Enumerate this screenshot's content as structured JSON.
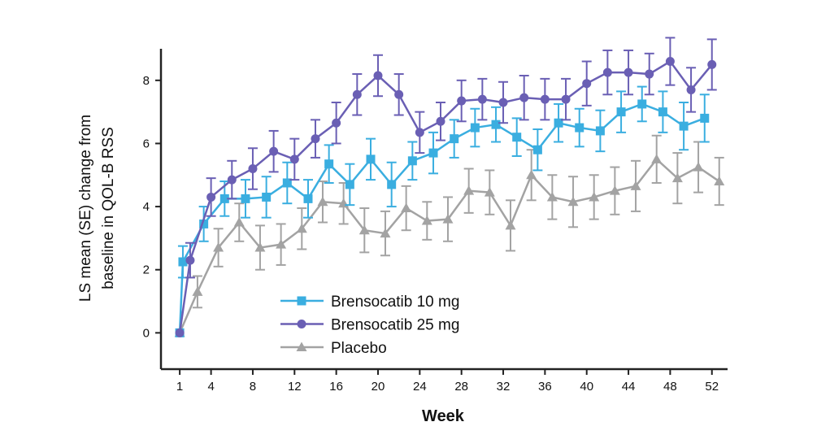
{
  "chart_data": {
    "type": "line",
    "title": "",
    "xlabel": "Week",
    "ylabel_lines": [
      "LS mean (SE) change from",
      "baseline in QOL-B RSS"
    ],
    "x_ticks": [
      1,
      4,
      8,
      12,
      16,
      20,
      24,
      28,
      32,
      36,
      40,
      44,
      48,
      52
    ],
    "y_ticks": [
      0,
      2,
      4,
      6,
      8
    ],
    "xlim": [
      -0.8,
      53.5
    ],
    "ylim": [
      -1.15,
      9.0
    ],
    "grid": false,
    "legend_position": "bottom-center",
    "x": [
      1,
      2,
      4,
      6,
      8,
      10,
      12,
      14,
      16,
      18,
      20,
      22,
      24,
      26,
      28,
      30,
      32,
      34,
      36,
      38,
      40,
      42,
      44,
      46,
      48,
      50,
      52
    ],
    "series": [
      {
        "name": "Brensocatib 10 mg",
        "color": "#3aaee0",
        "marker": "square",
        "values": [
          0,
          2.25,
          3.45,
          4.25,
          4.25,
          4.3,
          4.75,
          4.25,
          5.35,
          4.7,
          5.5,
          4.7,
          5.45,
          5.7,
          6.15,
          6.5,
          6.6,
          6.2,
          5.8,
          6.65,
          6.5,
          6.4,
          7.0,
          7.25,
          7.0,
          6.55,
          6.8
        ],
        "se": [
          0,
          0.5,
          0.55,
          0.55,
          0.6,
          0.65,
          0.65,
          0.6,
          0.6,
          0.65,
          0.65,
          0.7,
          0.6,
          0.65,
          0.6,
          0.6,
          0.55,
          0.6,
          0.65,
          0.6,
          0.6,
          0.65,
          0.65,
          0.55,
          0.65,
          0.75,
          0.75
        ]
      },
      {
        "name": "Brensocatib 25 mg",
        "color": "#6a5fb4",
        "marker": "circle",
        "values": [
          0,
          2.3,
          4.3,
          4.85,
          5.2,
          5.75,
          5.5,
          6.15,
          6.65,
          7.55,
          8.15,
          7.55,
          6.35,
          6.7,
          7.35,
          7.4,
          7.3,
          7.45,
          7.4,
          7.4,
          7.9,
          8.25,
          8.25,
          8.2,
          8.6,
          7.7,
          8.5
        ],
        "se": [
          0,
          0.55,
          0.6,
          0.6,
          0.65,
          0.65,
          0.65,
          0.6,
          0.65,
          0.65,
          0.65,
          0.65,
          0.65,
          0.6,
          0.65,
          0.65,
          0.65,
          0.7,
          0.65,
          0.65,
          0.7,
          0.7,
          0.7,
          0.65,
          0.75,
          0.7,
          0.8
        ]
      },
      {
        "name": "Placebo",
        "color": "#a3a3a3",
        "marker": "triangle",
        "values": [
          0,
          1.3,
          2.7,
          3.5,
          2.7,
          2.8,
          3.3,
          4.15,
          4.1,
          3.25,
          3.15,
          3.95,
          3.55,
          3.6,
          4.5,
          4.45,
          3.4,
          5.0,
          4.3,
          4.15,
          4.3,
          4.5,
          4.65,
          5.5,
          4.9,
          5.25,
          4.8
        ],
        "se": [
          0,
          0.5,
          0.6,
          0.6,
          0.7,
          0.65,
          0.65,
          0.65,
          0.65,
          0.7,
          0.7,
          0.7,
          0.6,
          0.7,
          0.7,
          0.7,
          0.8,
          0.8,
          0.7,
          0.8,
          0.7,
          0.75,
          0.8,
          0.75,
          0.8,
          0.8,
          0.75
        ]
      }
    ]
  }
}
